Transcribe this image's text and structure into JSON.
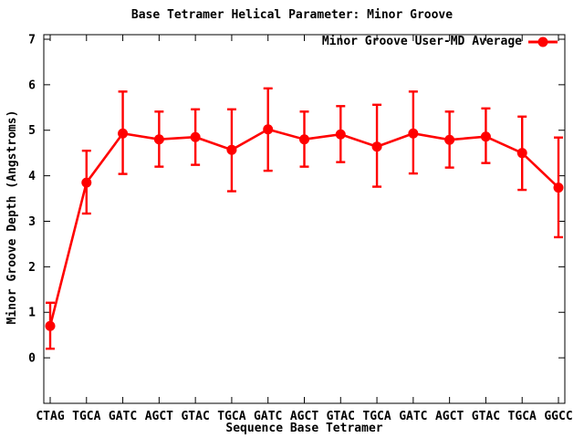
{
  "chart": {
    "title": "Base Tetramer Helical Parameter: Minor Groove",
    "xlabel": "Sequence Base Tetramer",
    "ylabel": "Minor Groove Depth (Angstroms)",
    "legend_label": "Minor Groove User-MD Average"
  },
  "chart_data": {
    "type": "line",
    "title": "Base Tetramer Helical Parameter: Minor Groove",
    "xlabel": "Sequence Base Tetramer",
    "ylabel": "Minor Groove Depth (Angstroms)",
    "categories": [
      "CTAG",
      "TGCA",
      "GATC",
      "AGCT",
      "GTAC",
      "TGCA",
      "GATC",
      "AGCT",
      "GTAC",
      "TGCA",
      "GATC",
      "AGCT",
      "GTAC",
      "TGCA",
      "GGCC"
    ],
    "series": [
      {
        "name": "Minor Groove User-MD Average",
        "marker": "filled-circle",
        "values": [
          0.7,
          3.85,
          4.93,
          4.8,
          4.85,
          4.57,
          5.02,
          4.8,
          4.91,
          4.64,
          4.93,
          4.79,
          4.86,
          4.5,
          3.74
        ],
        "err_low": [
          0.2,
          3.17,
          4.04,
          4.2,
          4.24,
          3.66,
          4.11,
          4.2,
          4.3,
          3.76,
          4.05,
          4.18,
          4.28,
          3.69,
          2.65
        ],
        "err_high": [
          1.21,
          4.55,
          5.85,
          5.41,
          5.46,
          5.46,
          5.92,
          5.41,
          5.53,
          5.56,
          5.85,
          5.41,
          5.48,
          5.3,
          4.84
        ]
      }
    ],
    "yticks": [
      0,
      1,
      2,
      3,
      4,
      5,
      6,
      7
    ],
    "ylim": [
      -1.0,
      7.1
    ],
    "grid": false,
    "legend_position": "top-right-inside",
    "colors": {
      "series": "#ff0000",
      "frame": "#000000",
      "background": "#ffffff",
      "text": "#000000"
    }
  }
}
